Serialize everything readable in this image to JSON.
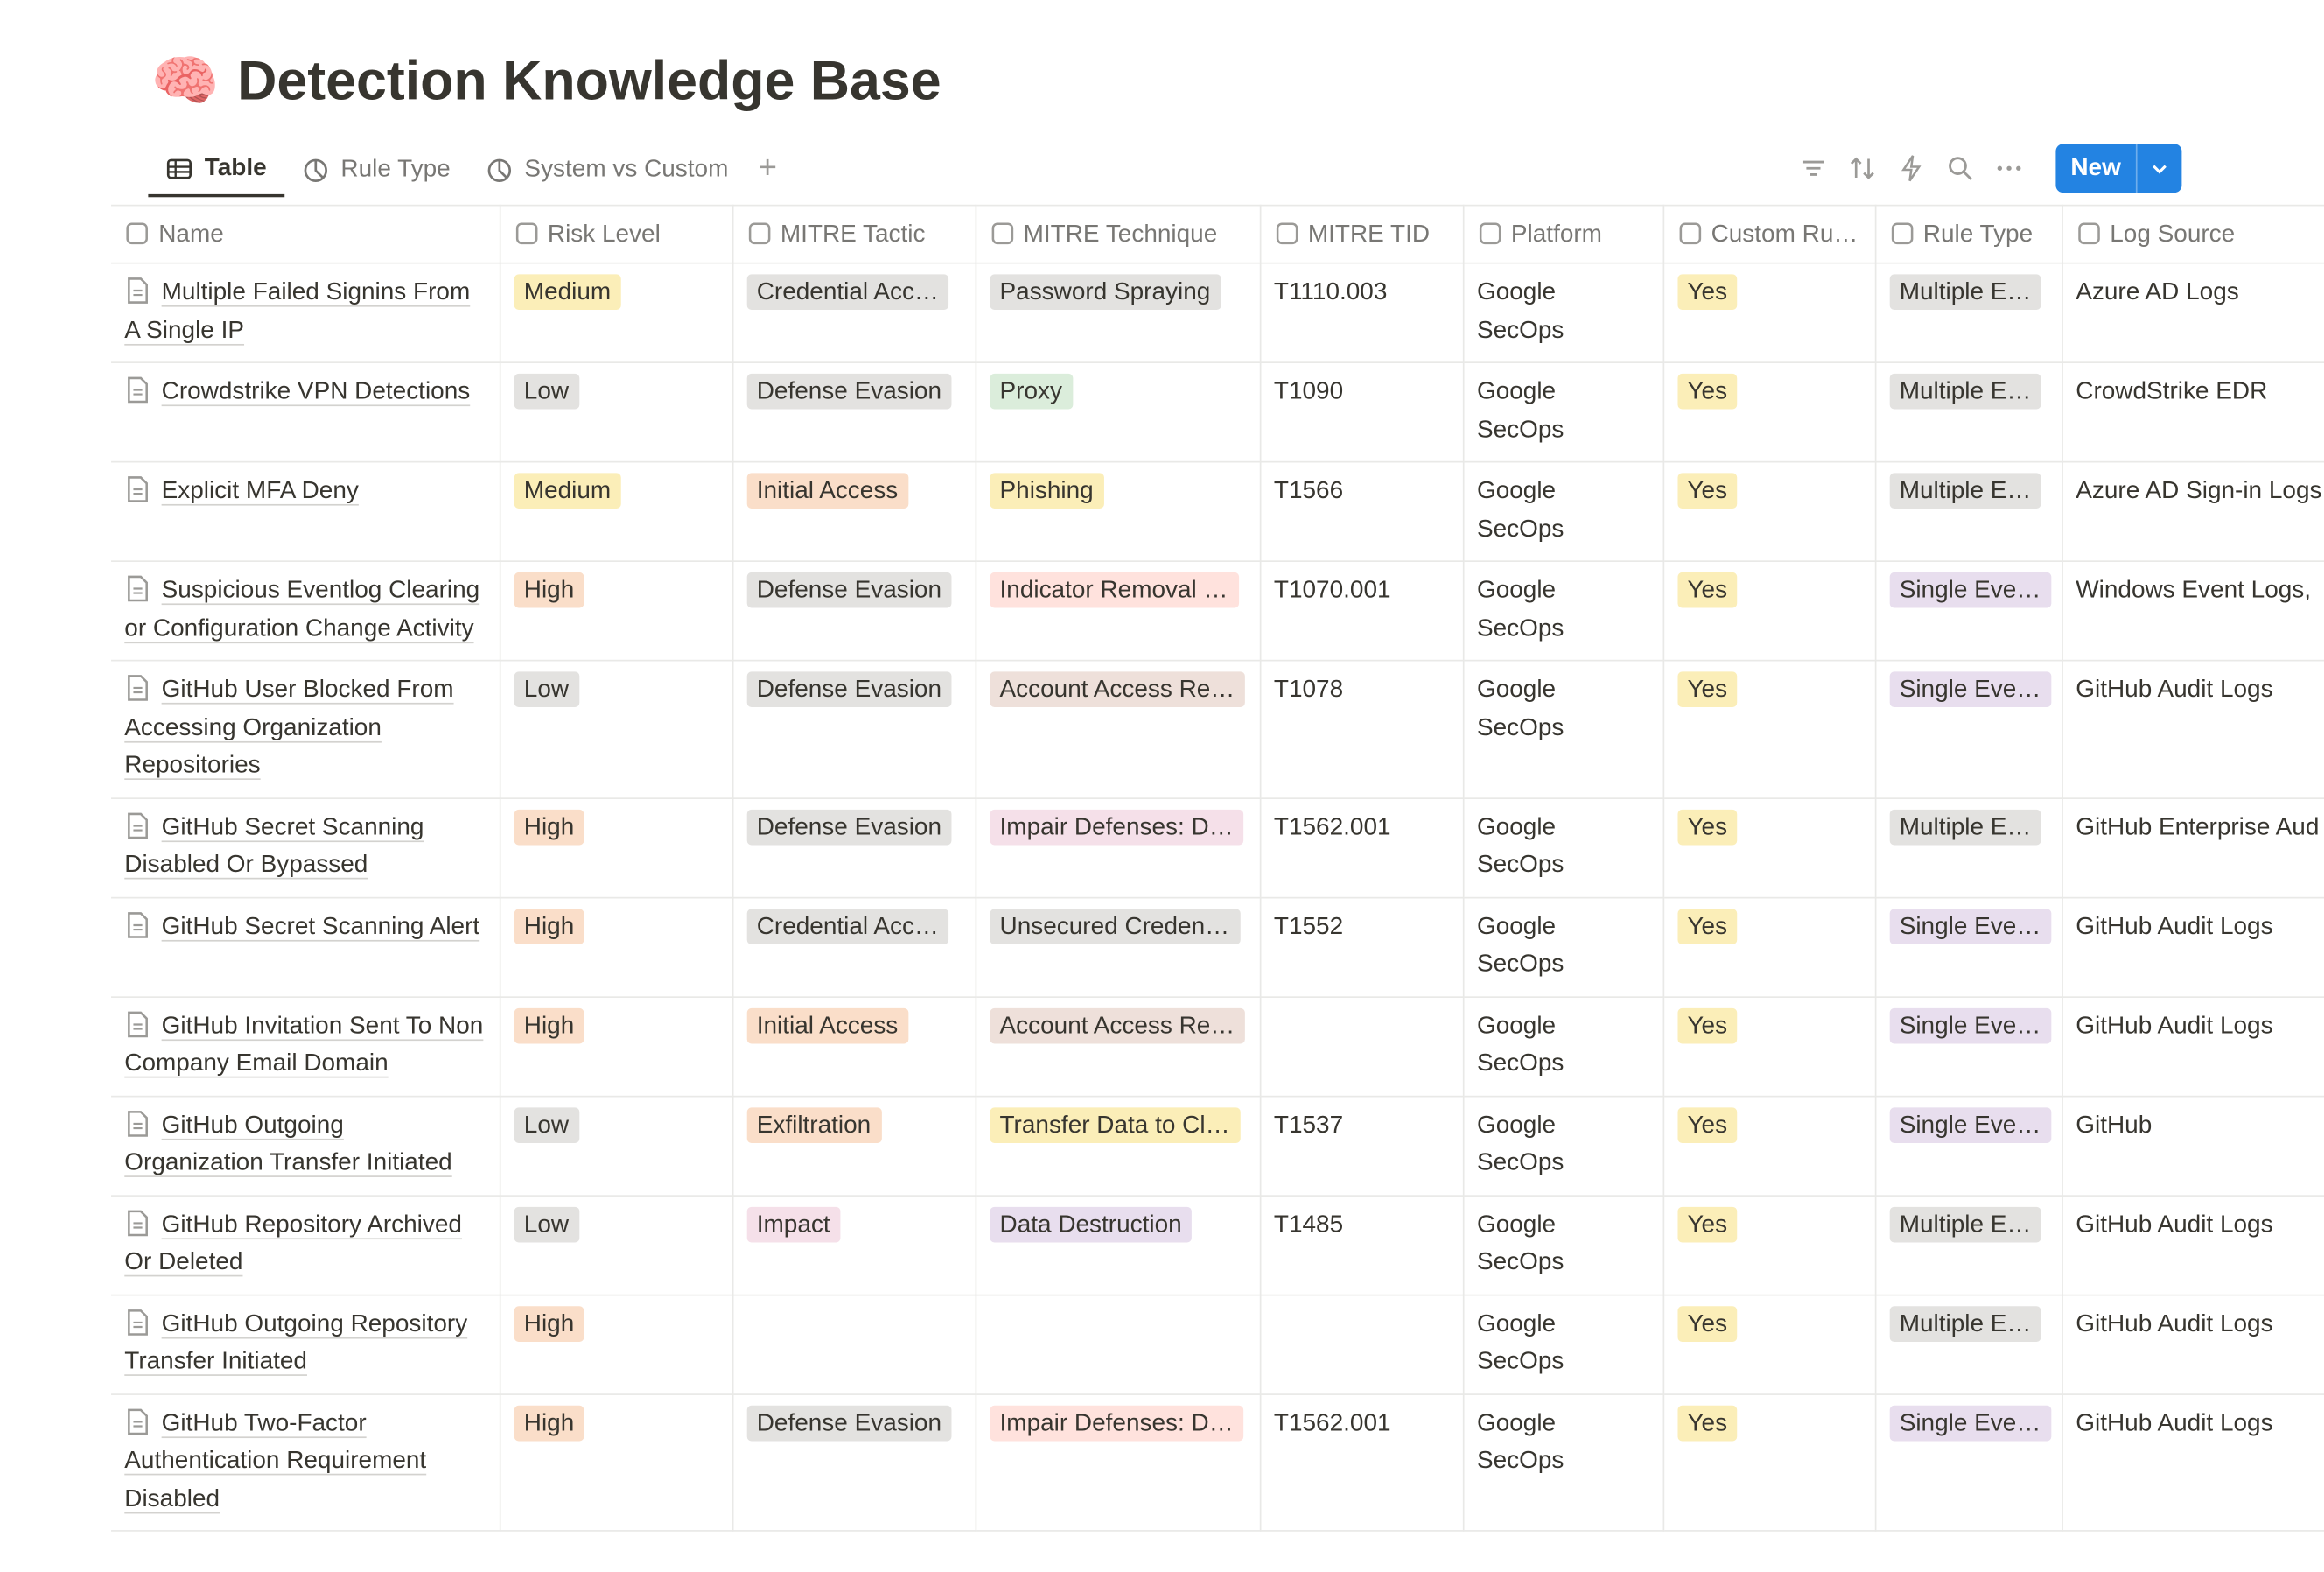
{
  "header": {
    "icon": "🧠",
    "title": "Detection Knowledge Base"
  },
  "views": [
    "Table",
    "Rule Type",
    "System vs Custom"
  ],
  "toolbar": {
    "new": "New"
  },
  "table": {
    "columns": [
      "Name",
      "Risk Level",
      "MITRE Tactic",
      "MITRE Technique",
      "MITRE TID",
      "Platform",
      "Custom Ru…",
      "Rule Type",
      "Log Source"
    ],
    "rows": [
      {
        "cells": [
          "Multiple Failed Signins From A Single IP",
          {
            "text": "Medium",
            "color": "#fbeeb8"
          },
          {
            "text": "Credential Acc…",
            "color": "#e3e2e0"
          },
          {
            "text": "Password Spraying",
            "color": "#e3e2e0"
          },
          "T1110.003",
          "Google SecOps",
          {
            "text": "Yes",
            "color": "#fbeeb8"
          },
          {
            "text": "Multiple E…",
            "color": "#e3e2e0"
          },
          "Azure AD Logs"
        ]
      },
      {
        "cells": [
          "Crowdstrike VPN Detections",
          {
            "text": "Low",
            "color": "#e3e2e0"
          },
          {
            "text": "Defense Evasion",
            "color": "#e3e2e0"
          },
          {
            "text": "Proxy",
            "color": "#dbeddb"
          },
          "T1090",
          "Google SecOps",
          {
            "text": "Yes",
            "color": "#fbeeb8"
          },
          {
            "text": "Multiple E…",
            "color": "#e3e2e0"
          },
          "CrowdStrike EDR"
        ]
      },
      {
        "cells": [
          "Explicit MFA Deny",
          {
            "text": "Medium",
            "color": "#fbeeb8"
          },
          {
            "text": "Initial Access",
            "color": "#fadec9"
          },
          {
            "text": "Phishing",
            "color": "#fbeeb8"
          },
          "T1566",
          "Google SecOps",
          {
            "text": "Yes",
            "color": "#fbeeb8"
          },
          {
            "text": "Multiple E…",
            "color": "#e3e2e0"
          },
          "Azure AD Sign-in Logs"
        ]
      },
      {
        "cells": [
          "Suspicious Eventlog Clearing or Configuration Change Activity",
          {
            "text": "High",
            "color": "#fadec9"
          },
          {
            "text": "Defense Evasion",
            "color": "#e3e2e0"
          },
          {
            "text": "Indicator Removal …",
            "color": "#ffe2dd"
          },
          "T1070.001",
          "Google SecOps",
          {
            "text": "Yes",
            "color": "#fbeeb8"
          },
          {
            "text": "Single Eve…",
            "color": "#e8deee"
          },
          "Windows Event Logs,"
        ]
      },
      {
        "cells": [
          "GitHub User Blocked From Accessing Organization Repositories",
          {
            "text": "Low",
            "color": "#e3e2e0"
          },
          {
            "text": "Defense Evasion",
            "color": "#e3e2e0"
          },
          {
            "text": "Account Access Re…",
            "color": "#eee0da"
          },
          "T1078",
          "Google SecOps",
          {
            "text": "Yes",
            "color": "#fbeeb8"
          },
          {
            "text": "Single Eve…",
            "color": "#e8deee"
          },
          "GitHub Audit Logs"
        ]
      },
      {
        "cells": [
          "GitHub Secret Scanning Disabled Or Bypassed",
          {
            "text": "High",
            "color": "#fadec9"
          },
          {
            "text": "Defense Evasion",
            "color": "#e3e2e0"
          },
          {
            "text": "Impair Defenses: D…",
            "color": "#f5e0e9"
          },
          "T1562.001",
          "Google SecOps",
          {
            "text": "Yes",
            "color": "#fbeeb8"
          },
          {
            "text": "Multiple E…",
            "color": "#e3e2e0"
          },
          "GitHub Enterprise Aud"
        ]
      },
      {
        "cells": [
          "GitHub Secret Scanning Alert",
          {
            "text": "High",
            "color": "#fadec9"
          },
          {
            "text": "Credential Acc…",
            "color": "#e3e2e0"
          },
          {
            "text": "Unsecured Creden…",
            "color": "#e3e2e0"
          },
          "T1552",
          "Google SecOps",
          {
            "text": "Yes",
            "color": "#fbeeb8"
          },
          {
            "text": "Single Eve…",
            "color": "#e8deee"
          },
          "GitHub Audit Logs"
        ]
      },
      {
        "cells": [
          "GitHub Invitation Sent To Non Company Email Domain",
          {
            "text": "High",
            "color": "#fadec9"
          },
          {
            "text": "Initial Access",
            "color": "#fadec9"
          },
          {
            "text": "Account Access Re…",
            "color": "#eee0da"
          },
          null,
          "Google SecOps",
          {
            "text": "Yes",
            "color": "#fbeeb8"
          },
          {
            "text": "Single Eve…",
            "color": "#e8deee"
          },
          "GitHub Audit Logs"
        ]
      },
      {
        "cells": [
          "GitHub Outgoing Organization Transfer Initiated",
          {
            "text": "Low",
            "color": "#e3e2e0"
          },
          {
            "text": "Exfiltration",
            "color": "#fadec9"
          },
          {
            "text": "Transfer Data to Cl…",
            "color": "#fbeeb8"
          },
          "T1537",
          "Google SecOps",
          {
            "text": "Yes",
            "color": "#fbeeb8"
          },
          {
            "text": "Single Eve…",
            "color": "#e8deee"
          },
          "GitHub"
        ]
      },
      {
        "cells": [
          "GitHub Repository Archived Or Deleted",
          {
            "text": "Low",
            "color": "#e3e2e0"
          },
          {
            "text": "Impact",
            "color": "#f5e0e9"
          },
          {
            "text": "Data Destruction",
            "color": "#e8deee"
          },
          "T1485",
          "Google SecOps",
          {
            "text": "Yes",
            "color": "#fbeeb8"
          },
          {
            "text": "Multiple E…",
            "color": "#e3e2e0"
          },
          "GitHub Audit Logs"
        ]
      },
      {
        "cells": [
          "GitHub Outgoing Repository Transfer Initiated",
          {
            "text": "High",
            "color": "#fadec9"
          },
          null,
          null,
          null,
          "Google SecOps",
          {
            "text": "Yes",
            "color": "#fbeeb8"
          },
          {
            "text": "Multiple E…",
            "color": "#e3e2e0"
          },
          "GitHub Audit Logs"
        ]
      },
      {
        "cells": [
          "GitHub Two-Factor Authentication Requirement Disabled",
          {
            "text": "High",
            "color": "#fadec9"
          },
          {
            "text": "Defense Evasion",
            "color": "#e3e2e0"
          },
          {
            "text": "Impair Defenses: D…",
            "color": "#ffe2dd"
          },
          "T1562.001",
          "Google SecOps",
          {
            "text": "Yes",
            "color": "#fbeeb8"
          },
          {
            "text": "Single Eve…",
            "color": "#e8deee"
          },
          "GitHub Audit Logs"
        ]
      }
    ]
  }
}
